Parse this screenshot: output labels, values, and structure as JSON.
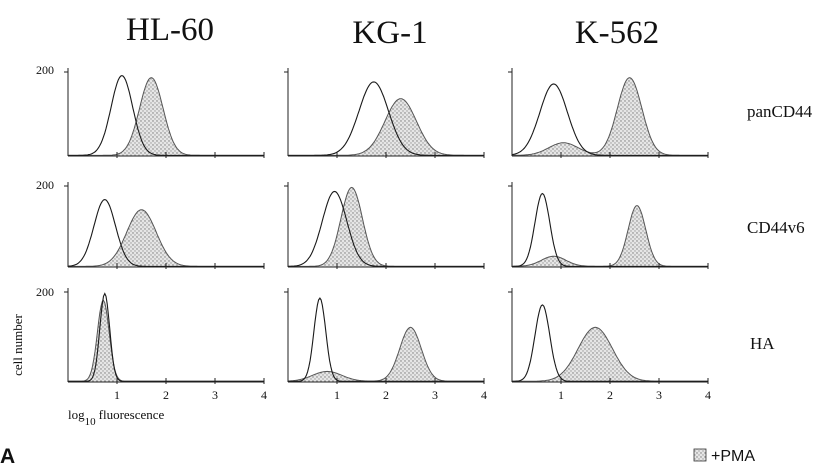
{
  "figure": {
    "panel_letter": "A",
    "y_axis_label": "cell number",
    "x_axis_label_prefix": "log",
    "x_axis_label_subscript": "10",
    "x_axis_label_suffix": "fluorescence",
    "legend_label": "+PMA",
    "colors": {
      "control_line": "#1a1a1a",
      "pma_line": "#555555",
      "pma_fill": "#c8c8c8",
      "axis": "#222222"
    }
  },
  "chart_data": {
    "type": "area",
    "xlim": [
      0,
      4
    ],
    "ylim": [
      0,
      200
    ],
    "y_tick_label": "200",
    "x_ticks": [
      "1",
      "2",
      "3",
      "4"
    ],
    "columns": [
      "HL-60",
      "KG-1",
      "K-562"
    ],
    "rows": [
      "panCD44",
      "CD44v6",
      "HA"
    ],
    "legend": "+PMA",
    "grid": false,
    "panels": [
      {
        "cell_line": "HL-60",
        "marker": "panCD44",
        "control": {
          "peaks": [
            {
              "mu": 1.1,
              "sigma": 0.22,
              "h": 190
            }
          ]
        },
        "pma": {
          "peaks": [
            {
              "mu": 1.7,
              "sigma": 0.24,
              "h": 185
            }
          ]
        }
      },
      {
        "cell_line": "KG-1",
        "marker": "panCD44",
        "control": {
          "peaks": [
            {
              "mu": 1.75,
              "sigma": 0.3,
              "h": 175
            }
          ]
        },
        "pma": {
          "peaks": [
            {
              "mu": 2.3,
              "sigma": 0.32,
              "h": 135
            }
          ]
        }
      },
      {
        "cell_line": "K-562",
        "marker": "panCD44",
        "control": {
          "peaks": [
            {
              "mu": 0.85,
              "sigma": 0.28,
              "h": 170
            }
          ]
        },
        "pma": {
          "peaks": [
            {
              "mu": 1.05,
              "sigma": 0.3,
              "h": 30
            },
            {
              "mu": 2.4,
              "sigma": 0.25,
              "h": 185
            }
          ]
        }
      },
      {
        "cell_line": "HL-60",
        "marker": "CD44v6",
        "control": {
          "peaks": [
            {
              "mu": 0.75,
              "sigma": 0.22,
              "h": 165
            }
          ]
        },
        "pma": {
          "peaks": [
            {
              "mu": 1.5,
              "sigma": 0.3,
              "h": 140
            }
          ]
        }
      },
      {
        "cell_line": "KG-1",
        "marker": "CD44v6",
        "control": {
          "peaks": [
            {
              "mu": 0.95,
              "sigma": 0.25,
              "h": 185
            }
          ]
        },
        "pma": {
          "peaks": [
            {
              "mu": 1.3,
              "sigma": 0.22,
              "h": 195
            }
          ]
        }
      },
      {
        "cell_line": "K-562",
        "marker": "CD44v6",
        "control": {
          "peaks": [
            {
              "mu": 0.62,
              "sigma": 0.15,
              "h": 180
            }
          ]
        },
        "pma": {
          "peaks": [
            {
              "mu": 0.85,
              "sigma": 0.25,
              "h": 25
            },
            {
              "mu": 2.55,
              "sigma": 0.18,
              "h": 150
            }
          ]
        }
      },
      {
        "cell_line": "HL-60",
        "marker": "HA",
        "control": {
          "peaks": [
            {
              "mu": 0.75,
              "sigma": 0.1,
              "h": 195
            }
          ]
        },
        "pma": {
          "peaks": [
            {
              "mu": 0.72,
              "sigma": 0.12,
              "h": 180
            }
          ]
        }
      },
      {
        "cell_line": "KG-1",
        "marker": "HA",
        "control": {
          "peaks": [
            {
              "mu": 0.65,
              "sigma": 0.12,
              "h": 185
            }
          ]
        },
        "pma": {
          "peaks": [
            {
              "mu": 0.8,
              "sigma": 0.3,
              "h": 22
            },
            {
              "mu": 2.5,
              "sigma": 0.22,
              "h": 120
            }
          ]
        }
      },
      {
        "cell_line": "K-562",
        "marker": "HA",
        "control": {
          "peaks": [
            {
              "mu": 0.62,
              "sigma": 0.15,
              "h": 170
            }
          ]
        },
        "pma": {
          "peaks": [
            {
              "mu": 1.7,
              "sigma": 0.35,
              "h": 120
            }
          ]
        }
      }
    ]
  }
}
